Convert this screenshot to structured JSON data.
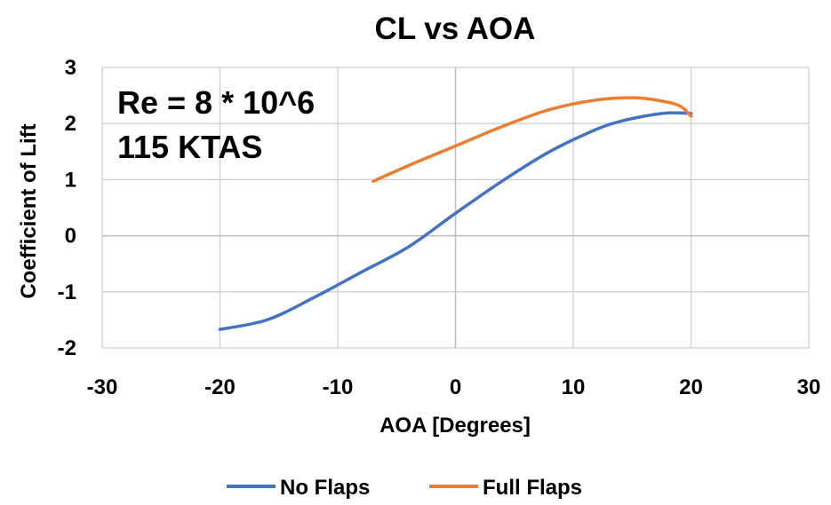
{
  "chart_data": {
    "type": "line",
    "title": "CL vs AOA",
    "xlabel": "AOA [Degrees]",
    "ylabel": "Coefficient of Lift",
    "xlim": [
      -30,
      30
    ],
    "ylim": [
      -2,
      3
    ],
    "x_ticks": [
      -30,
      -20,
      -10,
      0,
      10,
      20,
      30
    ],
    "y_ticks": [
      -2,
      -1,
      0,
      1,
      2,
      3
    ],
    "x_tick_labels": [
      "-30",
      "-20",
      "-10",
      "0",
      "10",
      "20",
      "30"
    ],
    "y_tick_labels": [
      "-2",
      "-1",
      "0",
      "1",
      "2",
      "3"
    ],
    "grid": true,
    "legend_position": "bottom",
    "annotations": [
      "Re = 8 * 10^6",
      "115 KTAS"
    ],
    "series": [
      {
        "name": "No Flaps",
        "color": "#4472C4",
        "x": [
          -20,
          -16,
          -12,
          -8,
          -4,
          0,
          4,
          8,
          12,
          14,
          16,
          18,
          20
        ],
        "y": [
          -1.67,
          -1.5,
          -1.1,
          -0.65,
          -0.2,
          0.4,
          0.98,
          1.5,
          1.9,
          2.04,
          2.13,
          2.19,
          2.18
        ]
      },
      {
        "name": "Full Flaps",
        "color": "#ED7D31",
        "x": [
          -7,
          -4,
          0,
          4,
          8,
          12,
          15,
          17,
          19,
          20
        ],
        "y": [
          0.97,
          1.25,
          1.6,
          1.95,
          2.25,
          2.42,
          2.46,
          2.42,
          2.32,
          2.13
        ]
      }
    ]
  }
}
